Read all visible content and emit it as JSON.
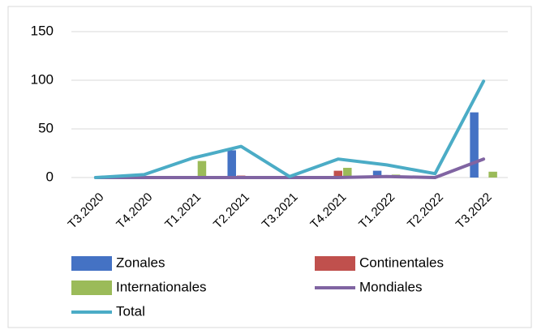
{
  "chart_data": {
    "type": "combo",
    "categories": [
      "T3.2020",
      "T4.2020",
      "T1.2021",
      "T2.2021",
      "T3.2021",
      "T4.2021",
      "T1.2022",
      "T2.2022",
      "T3.2022"
    ],
    "series": [
      {
        "name": "Zonales",
        "type": "bar",
        "color": "#4472c4",
        "values": [
          0,
          0,
          0,
          28,
          0,
          0,
          7,
          0,
          67
        ]
      },
      {
        "name": "Continentales",
        "type": "bar",
        "color": "#c0504d",
        "values": [
          0,
          0,
          0,
          2,
          0,
          7,
          0,
          0,
          0
        ]
      },
      {
        "name": "Internationales",
        "type": "bar",
        "color": "#9bbb59",
        "values": [
          0,
          0,
          17,
          0,
          0,
          10,
          3,
          0,
          6
        ]
      },
      {
        "name": "Mondiales",
        "type": "line",
        "color": "#8064a2",
        "values": [
          0,
          0,
          0,
          0,
          0,
          0,
          1,
          0,
          19
        ]
      },
      {
        "name": "Total",
        "type": "line",
        "color": "#4bacc6",
        "values": [
          0,
          3,
          20,
          32,
          1,
          19,
          13,
          4,
          99
        ]
      }
    ],
    "ylim": [
      0,
      150
    ],
    "yticks": [
      0,
      50,
      100,
      150
    ],
    "grid": true,
    "legend": "bottom"
  }
}
